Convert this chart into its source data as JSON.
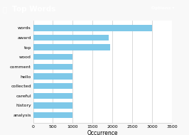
{
  "title": "Top Words",
  "categories": [
    "analysis",
    "history",
    "careful",
    "collected",
    "hello",
    "comment",
    "wood",
    "top",
    "award",
    "words"
  ],
  "values": [
    1000,
    1000,
    1000,
    1000,
    1000,
    1000,
    1000,
    1950,
    1900,
    3000
  ],
  "bar_color": "#7ec8e8",
  "xlabel": "Occurrence",
  "background_color": "#ffffff",
  "plot_bg_color": "#f8f8f8",
  "header_color": "#444444",
  "xlim": [
    0,
    3500
  ],
  "xticks": [
    0,
    500,
    1000,
    1500,
    2000,
    2500,
    3000,
    3500
  ],
  "title_fontsize": 7.5,
  "tick_fontsize": 4.5,
  "xlabel_fontsize": 5.5,
  "options_color": "#e8a020"
}
